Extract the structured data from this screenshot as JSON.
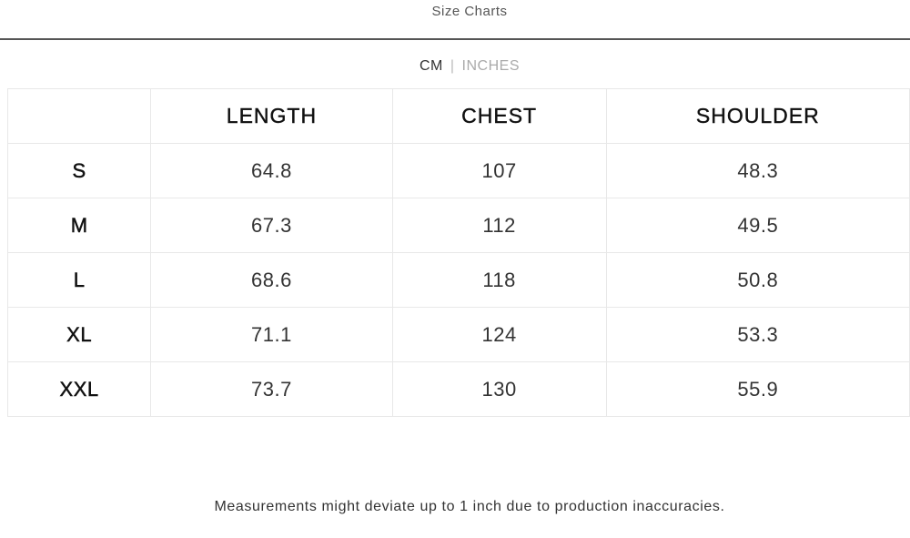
{
  "header": {
    "title": "Size Charts"
  },
  "units": {
    "active": "CM",
    "separator": "|",
    "inactive": "INCHES"
  },
  "table": {
    "columns": [
      "",
      "LENGTH",
      "CHEST",
      "SHOULDER"
    ],
    "rows": [
      [
        "S",
        "64.8",
        "107",
        "48.3"
      ],
      [
        "M",
        "67.3",
        "112",
        "49.5"
      ],
      [
        "L",
        "68.6",
        "118",
        "50.8"
      ],
      [
        "XL",
        "71.1",
        "124",
        "53.3"
      ],
      [
        "XXL",
        "73.7",
        "130",
        "55.9"
      ]
    ]
  },
  "footer": {
    "note": "Measurements might deviate up to 1 inch due to production inaccuracies."
  }
}
